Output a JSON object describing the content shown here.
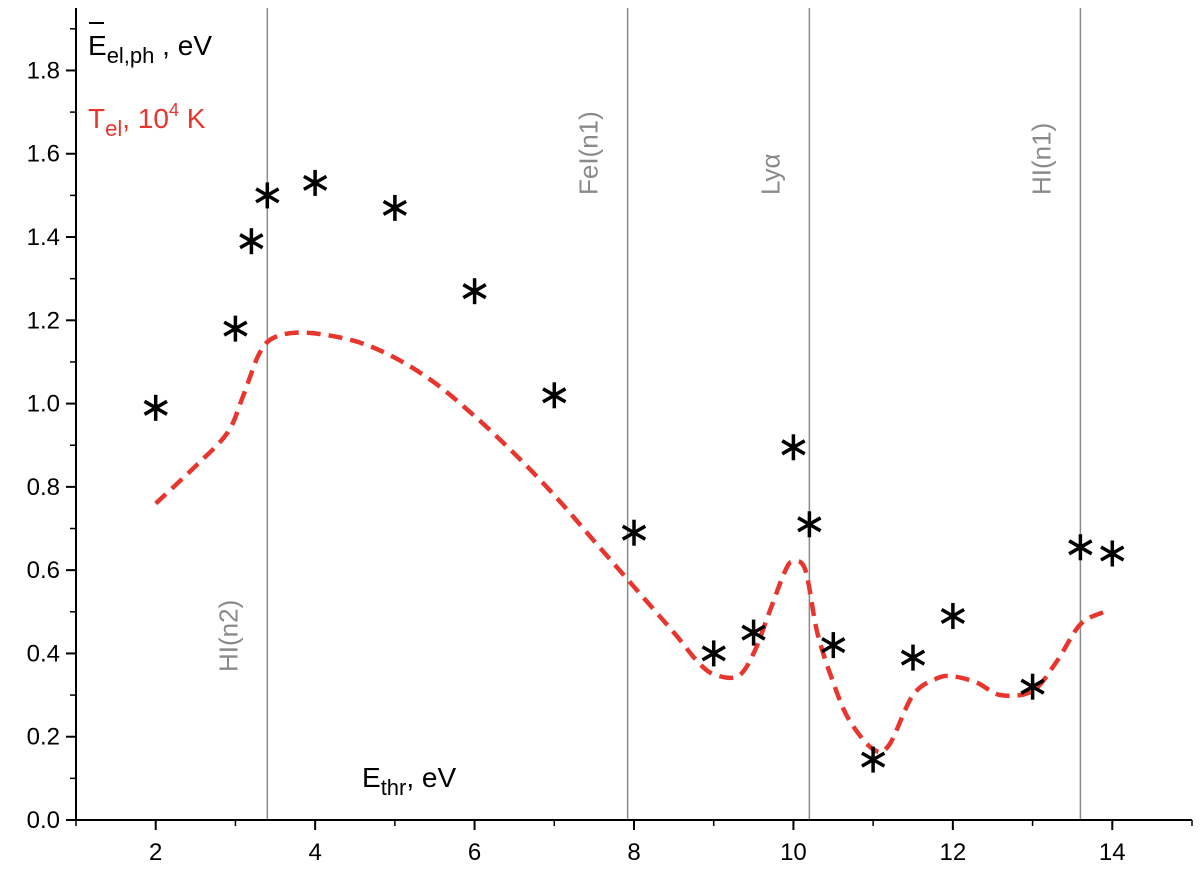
{
  "chart_data": {
    "type": "scatter",
    "xlim": [
      1,
      15
    ],
    "ylim": [
      0,
      1.95
    ],
    "x_ticks": [
      "2",
      "4",
      "6",
      "8",
      "10",
      "12",
      "14"
    ],
    "y_ticks": [
      "0.0",
      "0.2",
      "0.4",
      "0.6",
      "0.8",
      "1.0",
      "1.2",
      "1.4",
      "1.6",
      "1.8"
    ],
    "xlabel": {
      "base": "E",
      "sub": "thr",
      "rest": ", eV"
    },
    "legend": {
      "placement": "top-left",
      "scatter_label": {
        "base": "E",
        "sub": "el,ph",
        "rest": " , eV"
      },
      "line_label": {
        "base": "T",
        "sub": "el",
        "mid": ", 10",
        "sup": "4",
        "rest": " K"
      }
    },
    "colors": {
      "scatter": "#000000",
      "line": "#e8362e",
      "vlines": "#8a8a8a"
    },
    "grid": false,
    "series": [
      {
        "type": "scatter",
        "marker": "asterisk",
        "x": [
          2,
          3,
          3.2,
          3.4,
          4,
          5,
          6,
          7,
          8,
          9,
          9.5,
          10,
          10.2,
          10.5,
          11,
          11.5,
          12,
          13,
          13.6,
          14
        ],
        "y": [
          0.99,
          1.18,
          1.39,
          1.5,
          1.53,
          1.47,
          1.27,
          1.02,
          0.69,
          0.4,
          0.45,
          0.895,
          0.71,
          0.42,
          0.145,
          0.39,
          0.49,
          0.32,
          0.655,
          0.64
        ]
      },
      {
        "type": "line",
        "style": "dashed",
        "x": [
          2,
          2.5,
          2.9,
          3.1,
          3.3,
          3.5,
          3.9,
          4.5,
          5,
          5.5,
          6,
          6.5,
          7,
          7.5,
          8,
          8.5,
          8.8,
          9,
          9.3,
          9.5,
          9.7,
          9.9,
          10,
          10.15,
          10.3,
          10.5,
          10.7,
          11,
          11.2,
          11.5,
          11.8,
          12,
          12.3,
          12.6,
          13,
          13.3,
          13.6,
          13.9
        ],
        "y": [
          0.76,
          0.85,
          0.93,
          1.02,
          1.12,
          1.16,
          1.17,
          1.15,
          1.11,
          1.05,
          0.97,
          0.88,
          0.78,
          0.67,
          0.56,
          0.45,
          0.38,
          0.35,
          0.345,
          0.4,
          0.5,
          0.6,
          0.62,
          0.6,
          0.45,
          0.33,
          0.24,
          0.17,
          0.18,
          0.3,
          0.34,
          0.345,
          0.33,
          0.3,
          0.31,
          0.38,
          0.47,
          0.5
        ]
      }
    ],
    "vlines": [
      {
        "x": 3.4,
        "label": "HI(n2)",
        "label_position": "bottom"
      },
      {
        "x": 7.92,
        "label": "FeI(n1)",
        "label_position": "top"
      },
      {
        "x": 10.2,
        "label": "Lyα",
        "label_position": "top"
      },
      {
        "x": 13.6,
        "label": "HI(n1)",
        "label_position": "top"
      }
    ]
  }
}
